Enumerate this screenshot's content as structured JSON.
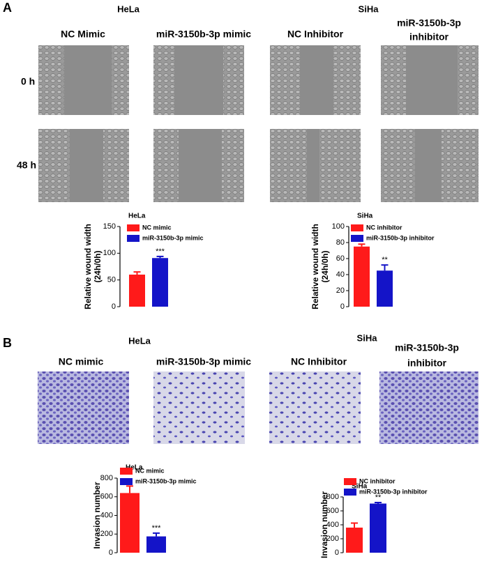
{
  "figure": {
    "panels": [
      {
        "label": "A",
        "groups": [
          "HeLa",
          "SiHa"
        ],
        "columns": [
          [
            "NC Mimic"
          ],
          [
            "miR-3150b-3p mimic"
          ],
          [
            "NC Inhibitor"
          ],
          [
            "miR-3150b-3p",
            "inhibitor"
          ]
        ],
        "rows": [
          "0 h",
          "48 h"
        ]
      },
      {
        "label": "B",
        "groups": [
          "HeLa",
          "SiHa"
        ],
        "columns": [
          [
            "NC mimic"
          ],
          [
            "miR-3150b-3p mimic"
          ],
          [
            "NC Inhibitor"
          ],
          [
            "miR-3150b-3p",
            "inhibitor"
          ]
        ]
      }
    ]
  },
  "chart_data": [
    {
      "type": "bar",
      "title": "HeLa",
      "ylabel": [
        "Relative wound width",
        "(24h/0h)"
      ],
      "categories": [
        "NC mimic",
        "miR-3150b-3p mimic"
      ],
      "values": [
        60,
        91
      ],
      "errors": [
        5,
        3
      ],
      "colors": [
        "#ff1a1a",
        "#1414c8"
      ],
      "annotation": "***",
      "ylim": [
        0,
        150
      ],
      "yticks": [
        0,
        50,
        100,
        150
      ]
    },
    {
      "type": "bar",
      "title": "SiHa",
      "ylabel": [
        "Relative wound width",
        "(24h/0h)"
      ],
      "categories": [
        "NC inhibitor",
        "miR-3150b-3p inhibitor"
      ],
      "values": [
        75,
        45
      ],
      "errors": [
        3,
        7
      ],
      "colors": [
        "#ff1a1a",
        "#1414c8"
      ],
      "annotation": "**",
      "ylim": [
        0,
        100
      ],
      "yticks": [
        0,
        20,
        40,
        60,
        80,
        100
      ]
    },
    {
      "type": "bar",
      "title": "HeLa",
      "ylabel": [
        "Invasion number"
      ],
      "categories": [
        "NC mimic",
        "miR-3150b-3p mimic"
      ],
      "values": [
        640,
        175
      ],
      "errors": [
        75,
        35
      ],
      "colors": [
        "#ff1a1a",
        "#1414c8"
      ],
      "annotation": "***",
      "ylim": [
        0,
        800
      ],
      "yticks": [
        0,
        200,
        400,
        600,
        800
      ]
    },
    {
      "type": "bar",
      "title": "SiHa",
      "ylabel": [
        "Invasion number"
      ],
      "categories": [
        "NC inhibitor",
        "miR-3150b-3p inhibitor"
      ],
      "values": [
        360,
        705
      ],
      "errors": [
        65,
        15
      ],
      "colors": [
        "#ff1a1a",
        "#1414c8"
      ],
      "annotation": "**",
      "ylim": [
        0,
        800
      ],
      "yticks": [
        0,
        200,
        400,
        600,
        800
      ]
    }
  ]
}
